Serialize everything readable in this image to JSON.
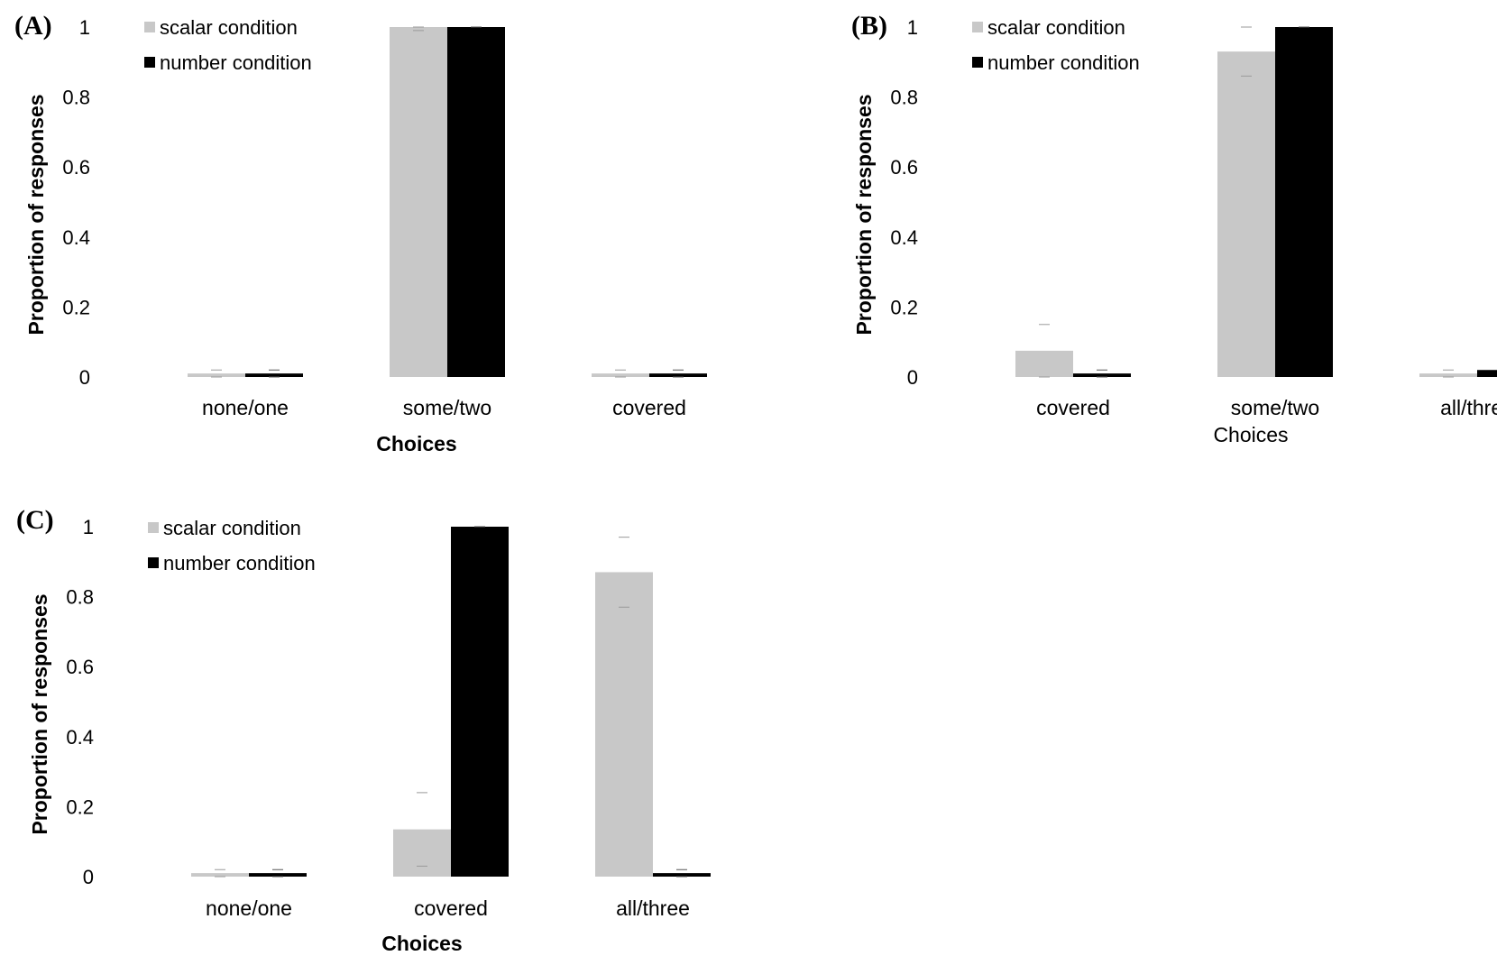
{
  "chart_data": [
    {
      "type": "bar",
      "panel_label": "(A)",
      "categories": [
        "none/one",
        "some/two",
        "covered"
      ],
      "series": [
        {
          "name": "scalar condition",
          "color": "#c8c8c8",
          "values": [
            0.01,
            1.0,
            0.01
          ],
          "error_low": [
            0.0,
            0.99,
            0.0
          ],
          "error_high": [
            0.02,
            1.0,
            0.02
          ]
        },
        {
          "name": "number condition",
          "color": "#000000",
          "values": [
            0.01,
            1.0,
            0.01
          ],
          "error_low": [
            0.0,
            1.0,
            0.0
          ],
          "error_high": [
            0.02,
            1.0,
            0.02
          ]
        }
      ],
      "xlabel": "Choices",
      "ylabel": "Proportion of responses",
      "ylim": [
        0,
        1
      ],
      "yticks": [
        "0",
        "0.2",
        "0.4",
        "0.6",
        "0.8",
        "1"
      ],
      "legend": "top-left",
      "grid": false
    },
    {
      "type": "bar",
      "panel_label": "(B)",
      "categories": [
        "covered",
        "some/two",
        "all/three"
      ],
      "series": [
        {
          "name": "scalar condition",
          "color": "#c8c8c8",
          "values": [
            0.075,
            0.93,
            0.01
          ],
          "error_low": [
            0.0,
            0.86,
            0.0
          ],
          "error_high": [
            0.15,
            1.0,
            0.02
          ]
        },
        {
          "name": "number condition",
          "color": "#000000",
          "values": [
            0.01,
            1.0,
            0.02
          ],
          "error_low": [
            0.0,
            1.0,
            0.01
          ],
          "error_high": [
            0.02,
            1.0,
            0.03
          ]
        }
      ],
      "xlabel": "Choices",
      "ylabel": "Proportion of responses",
      "ylim": [
        0,
        1
      ],
      "yticks": [
        "0",
        "0.2",
        "0.4",
        "0.6",
        "0.8",
        "1"
      ],
      "legend": "top-left",
      "grid": false
    },
    {
      "type": "bar",
      "panel_label": "(C)",
      "categories": [
        "none/one",
        "covered",
        "all/three"
      ],
      "series": [
        {
          "name": "scalar condition",
          "color": "#c8c8c8",
          "values": [
            0.01,
            0.135,
            0.87
          ],
          "error_low": [
            0.0,
            0.03,
            0.77
          ],
          "error_high": [
            0.02,
            0.24,
            0.97
          ]
        },
        {
          "name": "number condition",
          "color": "#000000",
          "values": [
            0.01,
            1.0,
            0.01
          ],
          "error_low": [
            0.0,
            1.0,
            0.0
          ],
          "error_high": [
            0.02,
            1.0,
            0.02
          ]
        }
      ],
      "xlabel": "Choices",
      "ylabel": "Proportion of responses",
      "ylim": [
        0,
        1
      ],
      "yticks": [
        "0",
        "0.2",
        "0.4",
        "0.6",
        "0.8",
        "1"
      ],
      "legend": "top-left",
      "grid": false
    }
  ]
}
